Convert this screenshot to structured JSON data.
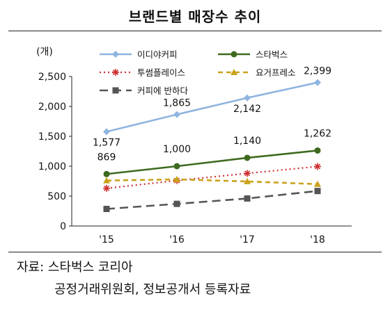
{
  "title": "브랜드별 매장수 추이",
  "unit": "(개)",
  "source": {
    "line1": "자료: 스타벅스 코리아",
    "line2": "공정거래위원회, 정보공개서 등록자료"
  },
  "colors": {
    "ediya": "#8fb4e0",
    "starbucks": "#3e6a1f",
    "twosome": "#cf2f2f",
    "yogerpresso": "#c9a21a",
    "coffeebanhada": "#555555"
  },
  "chart_data": {
    "type": "line",
    "categories": [
      "'15",
      "'16",
      "'17",
      "'18"
    ],
    "ylabel": "(개)",
    "ylim": [
      0,
      2500
    ],
    "yticks": [
      0,
      500,
      1000,
      1500,
      2000,
      2500
    ],
    "ytick_labels": [
      "0",
      "500",
      "1,000",
      "1,500",
      "2,000",
      "2,500"
    ],
    "legend_position": "top",
    "series": [
      {
        "name": "이디야커피",
        "key": "ediya",
        "values": [
          1577,
          1865,
          2142,
          2399
        ],
        "data_labels": [
          "1,577",
          "1,865",
          "2,142",
          "2,399"
        ],
        "marker": "diamond",
        "dash": "solid"
      },
      {
        "name": "스타벅스",
        "key": "starbucks",
        "values": [
          869,
          1000,
          1140,
          1262
        ],
        "data_labels": [
          "869",
          "1,000",
          "1,140",
          "1,262"
        ],
        "marker": "circle",
        "dash": "solid"
      },
      {
        "name": "투썸플레이스",
        "key": "twosome",
        "values": [
          630,
          760,
          880,
          995
        ],
        "marker": "asterisk",
        "dash": "dotted"
      },
      {
        "name": "요거프레소",
        "key": "yogerpresso",
        "values": [
          760,
          780,
          745,
          700
        ],
        "marker": "triangle",
        "dash": "dashed"
      },
      {
        "name": "커피에 반하다",
        "key": "coffeebanhada",
        "values": [
          285,
          370,
          460,
          585
        ],
        "marker": "square",
        "dash": "longdash"
      }
    ]
  }
}
